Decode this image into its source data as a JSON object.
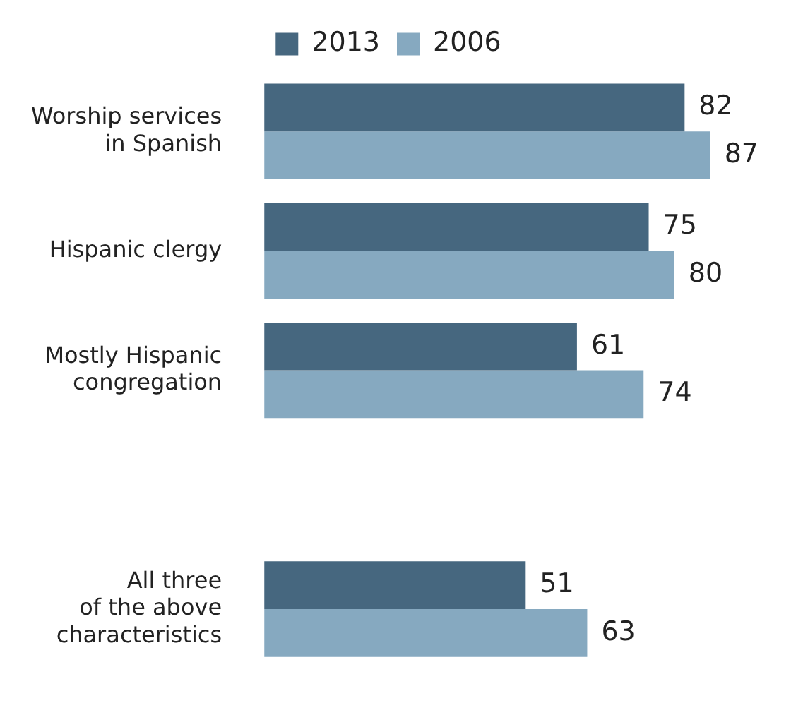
{
  "chart_data": {
    "type": "bar",
    "orientation": "horizontal",
    "categories": [
      "Worship services\nin Spanish",
      "Hispanic clergy",
      "Mostly Hispanic\ncongregation",
      null,
      "All three\nof the above\ncharacteristics"
    ],
    "series": [
      {
        "name": "2013",
        "color": "#46677f",
        "values": [
          82,
          75,
          61,
          null,
          51
        ]
      },
      {
        "name": "2006",
        "color": "#86a9c0",
        "values": [
          87,
          80,
          74,
          null,
          63
        ]
      }
    ],
    "data_labels": true,
    "legend": "top",
    "grid": false
  }
}
